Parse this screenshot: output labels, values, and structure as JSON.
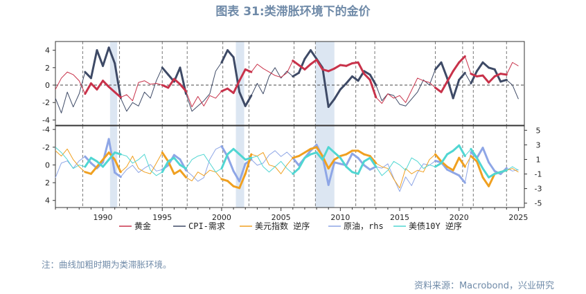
{
  "title": "图表 31:类滞胀环境下的金价",
  "note": "注：曲线加粗时期为类滞胀环境。",
  "source": "资料来源：Macrobond，兴业研究",
  "colors": {
    "gold": "#c8324a",
    "cpi": "#3e4a66",
    "usd": "#f0a020",
    "oil": "#8ea6e6",
    "ust10y": "#50d6d2",
    "shade": "#dce6f2",
    "vline": "#777777"
  },
  "chart_data": [
    {
      "type": "line",
      "panel": "top",
      "x_range": [
        1986.0,
        2025.5
      ],
      "ylim": [
        -4.6,
        5.0
      ],
      "y_ticks": [
        -4,
        -2,
        0,
        2,
        4
      ],
      "x_ticks": [
        1990,
        1995,
        2000,
        2005,
        2010,
        2015,
        2020,
        2025
      ],
      "zero_line": "dashed",
      "shaded_periods": [
        [
          1990.6,
          1991.2
        ],
        [
          2001.2,
          2001.9
        ],
        [
          2007.9,
          2009.5
        ]
      ],
      "event_lines": [
        1988.3,
        1991.4,
        1995.0,
        1997.1,
        2000.1,
        2002.3,
        2006.1,
        2007.9,
        2011.3,
        2012.9,
        2018.0,
        2020.3,
        2021.2,
        2024.0
      ],
      "bold_periods": [
        [
          1988.3,
          1991.4
        ],
        [
          1995.0,
          1997.1
        ],
        [
          2000.1,
          2002.3
        ],
        [
          2006.1,
          2007.9
        ],
        [
          2007.9,
          2011.3
        ],
        [
          2011.3,
          2012.9
        ],
        [
          2018.0,
          2020.3
        ],
        [
          2021.2,
          2024.0
        ]
      ],
      "series": [
        {
          "name": "黄金",
          "x": [
            1986.0,
            1986.5,
            1987.0,
            1987.5,
            1988.0,
            1988.5,
            1989.0,
            1989.5,
            1990.0,
            1990.5,
            1991.0,
            1991.5,
            1992.0,
            1992.5,
            1993.0,
            1993.5,
            1994.0,
            1994.5,
            1995.0,
            1995.5,
            1996.0,
            1996.5,
            1997.0,
            1997.5,
            1998.0,
            1998.5,
            1999.0,
            1999.5,
            2000.0,
            2000.5,
            2001.0,
            2001.5,
            2002.0,
            2002.5,
            2003.0,
            2003.5,
            2004.0,
            2004.5,
            2005.0,
            2005.5,
            2006.0,
            2006.5,
            2007.0,
            2007.5,
            2008.0,
            2008.5,
            2009.0,
            2009.5,
            2010.0,
            2010.5,
            2011.0,
            2011.5,
            2012.0,
            2012.5,
            2013.0,
            2013.5,
            2014.0,
            2014.5,
            2015.0,
            2015.5,
            2016.0,
            2016.5,
            2017.0,
            2017.5,
            2018.0,
            2018.5,
            2019.0,
            2019.5,
            2020.0,
            2020.5,
            2021.0,
            2021.5,
            2022.0,
            2022.5,
            2023.0,
            2023.5,
            2024.0,
            2024.5,
            2025.0
          ],
          "y": [
            -0.5,
            0.8,
            1.5,
            1.2,
            0.5,
            -1.0,
            0.2,
            -0.5,
            0.5,
            -0.2,
            -0.8,
            -1.4,
            -1.1,
            -1.8,
            0.3,
            0.5,
            0.1,
            0.2,
            0.0,
            -0.3,
            0.7,
            0.1,
            -0.7,
            -2.5,
            -1.3,
            -2.4,
            -1.2,
            -1.5,
            -0.7,
            -0.4,
            -0.9,
            0.5,
            1.8,
            1.5,
            2.4,
            1.9,
            1.5,
            1.1,
            0.9,
            1.4,
            2.8,
            2.3,
            1.8,
            2.4,
            2.9,
            1.8,
            1.6,
            1.9,
            2.3,
            2.2,
            2.5,
            2.6,
            1.3,
            0.6,
            -1.4,
            -2.1,
            -1.0,
            -1.5,
            -1.2,
            -2.0,
            -0.6,
            0.8,
            0.5,
            0.3,
            -0.3,
            -0.8,
            0.4,
            1.6,
            2.6,
            3.3,
            1.3,
            1.0,
            1.1,
            0.3,
            1.0,
            1.3,
            1.2,
            2.6,
            2.2
          ]
        },
        {
          "name": "CPI-需求",
          "x": [
            1986.0,
            1986.5,
            1987.0,
            1987.5,
            1988.0,
            1988.5,
            1989.0,
            1989.5,
            1990.0,
            1990.5,
            1991.0,
            1991.5,
            1992.0,
            1992.5,
            1993.0,
            1993.5,
            1994.0,
            1994.5,
            1995.0,
            1995.5,
            1996.0,
            1996.5,
            1997.0,
            1997.5,
            1998.0,
            1998.5,
            1999.0,
            1999.5,
            2000.0,
            2000.5,
            2001.0,
            2001.5,
            2002.0,
            2002.5,
            2003.0,
            2003.5,
            2004.0,
            2004.5,
            2005.0,
            2005.5,
            2006.0,
            2006.5,
            2007.0,
            2007.5,
            2008.0,
            2008.5,
            2009.0,
            2009.5,
            2010.0,
            2010.5,
            2011.0,
            2011.5,
            2012.0,
            2012.5,
            2013.0,
            2013.5,
            2014.0,
            2014.5,
            2015.0,
            2015.5,
            2016.0,
            2016.5,
            2017.0,
            2017.5,
            2018.0,
            2018.5,
            2019.0,
            2019.5,
            2020.0,
            2020.5,
            2021.0,
            2021.5,
            2022.0,
            2022.5,
            2023.0,
            2023.5,
            2024.0,
            2024.5,
            2025.0
          ],
          "y": [
            -1.5,
            -3.2,
            -0.8,
            -2.5,
            -1.0,
            1.5,
            0.8,
            4.0,
            2.2,
            4.3,
            2.5,
            -1.5,
            -3.0,
            -2.0,
            -2.4,
            -0.8,
            -1.5,
            0.5,
            2.0,
            1.2,
            0.4,
            2.0,
            -1.0,
            -3.0,
            -2.4,
            -1.8,
            -1.0,
            1.6,
            2.6,
            4.0,
            3.2,
            -0.8,
            -2.4,
            -1.2,
            0.2,
            -1.0,
            1.0,
            2.0,
            0.8,
            1.6,
            1.0,
            1.4,
            3.0,
            4.0,
            3.0,
            2.0,
            -2.5,
            -1.6,
            -0.5,
            0.2,
            1.0,
            0.5,
            1.6,
            1.2,
            0.0,
            -1.8,
            -1.0,
            -1.2,
            -2.2,
            -2.4,
            -1.6,
            -0.8,
            0.6,
            0.0,
            1.8,
            2.6,
            0.8,
            -1.5,
            0.6,
            1.4,
            0.2,
            1.6,
            2.6,
            2.0,
            1.8,
            0.4,
            0.6,
            0.0,
            -1.6
          ]
        }
      ]
    },
    {
      "type": "line",
      "panel": "bottom",
      "x_range": [
        1986.0,
        2025.5
      ],
      "ylim_left": [
        -4.4,
        4.8
      ],
      "ylim_left_inverted": true,
      "y_ticks_left": [
        -4,
        -2,
        0,
        2,
        4
      ],
      "ylim_right": [
        -5.6,
        5.6
      ],
      "y_ticks_right": [
        -5,
        -3,
        -1,
        1,
        3,
        5
      ],
      "x_ticks": [
        1990,
        1995,
        2000,
        2005,
        2010,
        2015,
        2020,
        2025
      ],
      "shaded_periods": [
        [
          1990.6,
          1991.2
        ],
        [
          2001.2,
          2001.9
        ],
        [
          2007.9,
          2009.5
        ]
      ],
      "event_lines": [
        1988.3,
        1991.4,
        1995.0,
        1997.1,
        2000.1,
        2002.3,
        2006.1,
        2007.9,
        2011.3,
        2012.9,
        2018.0,
        2020.3,
        2021.2,
        2024.0
      ],
      "bold_periods": [
        [
          1988.3,
          1991.4
        ],
        [
          1995.0,
          1997.1
        ],
        [
          2000.1,
          2002.3
        ],
        [
          2006.1,
          2007.9
        ],
        [
          2007.9,
          2011.3
        ],
        [
          2011.3,
          2012.9
        ],
        [
          2018.0,
          2020.3
        ],
        [
          2021.2,
          2024.0
        ]
      ],
      "series": [
        {
          "name": "美元指数 逆序",
          "axis": "left",
          "x": [
            1986.0,
            1986.5,
            1987.0,
            1987.5,
            1988.0,
            1988.5,
            1989.0,
            1989.5,
            1990.0,
            1990.5,
            1991.0,
            1991.5,
            1992.0,
            1992.5,
            1993.0,
            1993.5,
            1994.0,
            1994.5,
            1995.0,
            1995.5,
            1996.0,
            1996.5,
            1997.0,
            1997.5,
            1998.0,
            1998.5,
            1999.0,
            1999.5,
            2000.0,
            2000.5,
            2001.0,
            2001.5,
            2002.0,
            2002.5,
            2003.0,
            2003.5,
            2004.0,
            2004.5,
            2005.0,
            2005.5,
            2006.0,
            2006.5,
            2007.0,
            2007.5,
            2008.0,
            2008.5,
            2009.0,
            2009.5,
            2010.0,
            2010.5,
            2011.0,
            2011.5,
            2012.0,
            2012.5,
            2013.0,
            2013.5,
            2014.0,
            2014.5,
            2015.0,
            2015.5,
            2016.0,
            2016.5,
            2017.0,
            2017.5,
            2018.0,
            2018.5,
            2019.0,
            2019.5,
            2020.0,
            2020.5,
            2021.0,
            2021.5,
            2022.0,
            2022.5,
            2023.0,
            2023.5,
            2024.0,
            2024.5,
            2025.0
          ],
          "y": [
            -1.6,
            -1.0,
            -1.8,
            -0.6,
            0.2,
            0.8,
            1.0,
            0.2,
            -0.6,
            -1.4,
            -0.6,
            0.8,
            0.2,
            -1.0,
            0.4,
            0.8,
            1.0,
            -0.2,
            -1.4,
            -0.4,
            1.0,
            0.6,
            1.4,
            1.8,
            0.8,
            1.2,
            0.6,
            0.8,
            1.6,
            1.8,
            2.4,
            2.6,
            1.0,
            -1.2,
            -1.0,
            -1.4,
            0.0,
            0.2,
            1.0,
            0.0,
            -0.8,
            -1.0,
            -1.4,
            -1.8,
            -2.0,
            -1.0,
            0.4,
            -0.6,
            -1.0,
            -1.2,
            -1.6,
            -1.6,
            -1.2,
            -1.0,
            -0.2,
            0.2,
            0.4,
            1.6,
            2.6,
            0.4,
            1.0,
            0.6,
            0.8,
            -0.6,
            -1.2,
            -0.4,
            0.2,
            0.6,
            -0.8,
            0.2,
            -1.0,
            -0.4,
            1.4,
            2.4,
            1.0,
            0.8,
            0.6,
            0.4,
            0.8
          ]
        },
        {
          "name": "原油，rhs",
          "axis": "right",
          "x": [
            1986.0,
            1986.5,
            1987.0,
            1987.5,
            1988.0,
            1988.5,
            1989.0,
            1989.5,
            1990.0,
            1990.5,
            1991.0,
            1991.5,
            1992.0,
            1992.5,
            1993.0,
            1993.5,
            1994.0,
            1994.5,
            1995.0,
            1995.5,
            1996.0,
            1996.5,
            1997.0,
            1997.5,
            1998.0,
            1998.5,
            1999.0,
            1999.5,
            2000.0,
            2000.5,
            2001.0,
            2001.5,
            2002.0,
            2002.5,
            2003.0,
            2003.5,
            2004.0,
            2004.5,
            2005.0,
            2005.5,
            2006.0,
            2006.5,
            2007.0,
            2007.5,
            2008.0,
            2008.5,
            2009.0,
            2009.5,
            2010.0,
            2010.5,
            2011.0,
            2011.5,
            2012.0,
            2012.5,
            2013.0,
            2013.5,
            2014.0,
            2014.5,
            2015.0,
            2015.5,
            2016.0,
            2016.5,
            2017.0,
            2017.5,
            2018.0,
            2018.5,
            2019.0,
            2019.5,
            2020.0,
            2020.5,
            2021.0,
            2021.5,
            2022.0,
            2022.5,
            2023.0,
            2023.5,
            2024.0,
            2024.5,
            2025.0
          ],
          "y": [
            -1.5,
            0.5,
            0.8,
            -0.2,
            0.8,
            1.4,
            0.5,
            -0.2,
            0.6,
            3.8,
            -0.8,
            -1.4,
            -0.4,
            0.2,
            -0.8,
            -0.2,
            0.3,
            -0.6,
            -0.4,
            0.2,
            1.6,
            1.0,
            -0.5,
            -1.2,
            -2.0,
            -1.5,
            1.0,
            2.4,
            2.8,
            1.4,
            -0.6,
            -2.0,
            0.4,
            1.0,
            0.2,
            0.5,
            1.6,
            2.2,
            1.4,
            2.0,
            1.2,
            0.2,
            1.2,
            2.2,
            3.0,
            1.4,
            -2.5,
            0.6,
            0.4,
            0.2,
            1.8,
            1.2,
            0.2,
            -0.4,
            0.0,
            -0.2,
            0.4,
            -1.6,
            -3.4,
            -1.4,
            -2.6,
            -0.8,
            0.4,
            0.2,
            0.8,
            0.6,
            -0.4,
            -0.8,
            -1.2,
            -2.2,
            2.0,
            1.2,
            2.6,
            0.6,
            -0.6,
            -1.0,
            -0.2,
            -0.6,
            -0.4
          ]
        },
        {
          "name": "美债10Y 逆序",
          "axis": "left",
          "x": [
            1986.0,
            1986.5,
            1987.0,
            1987.5,
            1988.0,
            1988.5,
            1989.0,
            1989.5,
            1990.0,
            1990.5,
            1991.0,
            1991.5,
            1992.0,
            1992.5,
            1993.0,
            1993.5,
            1994.0,
            1994.5,
            1995.0,
            1995.5,
            1996.0,
            1996.5,
            1997.0,
            1997.5,
            1998.0,
            1998.5,
            1999.0,
            1999.5,
            2000.0,
            2000.5,
            2001.0,
            2001.5,
            2002.0,
            2002.5,
            2003.0,
            2003.5,
            2004.0,
            2004.5,
            2005.0,
            2005.5,
            2006.0,
            2006.5,
            2007.0,
            2007.5,
            2008.0,
            2008.5,
            2009.0,
            2009.5,
            2010.0,
            2010.5,
            2011.0,
            2011.5,
            2012.0,
            2012.5,
            2013.0,
            2013.5,
            2014.0,
            2014.5,
            2015.0,
            2015.5,
            2016.0,
            2016.5,
            2017.0,
            2017.5,
            2018.0,
            2018.5,
            2019.0,
            2019.5,
            2020.0,
            2020.5,
            2021.0,
            2021.5,
            2022.0,
            2022.5,
            2023.0,
            2023.5,
            2024.0,
            2024.5,
            2025.0
          ],
          "y": [
            -2.0,
            -1.4,
            -0.6,
            0.4,
            0.0,
            0.2,
            -0.8,
            -0.4,
            0.2,
            -0.6,
            -1.4,
            -1.2,
            -1.0,
            -0.2,
            -0.6,
            -1.2,
            0.6,
            1.2,
            0.8,
            -0.4,
            -0.8,
            0.0,
            0.4,
            -0.6,
            -1.0,
            -1.2,
            -0.2,
            0.8,
            0.4,
            -1.2,
            -1.8,
            -1.2,
            -0.6,
            -0.8,
            -1.0,
            0.2,
            0.8,
            0.2,
            -0.4,
            0.4,
            1.0,
            0.4,
            -0.8,
            -1.2,
            -1.4,
            -0.6,
            -2.0,
            -1.4,
            -0.8,
            0.2,
            0.8,
            1.0,
            -0.4,
            -0.8,
            0.2,
            1.2,
            0.6,
            -0.4,
            0.0,
            0.6,
            -0.8,
            -0.4,
            0.4,
            0.0,
            0.2,
            -0.2,
            -1.2,
            -1.6,
            -2.2,
            -1.0,
            -1.8,
            -0.8,
            0.4,
            1.4,
            1.0,
            0.8,
            0.6,
            0.2,
            0.6
          ]
        }
      ]
    }
  ],
  "legend": [
    {
      "label": "黄金",
      "color_key": "gold"
    },
    {
      "label": "CPI-需求",
      "color_key": "cpi"
    },
    {
      "label": "美元指数 逆序",
      "color_key": "usd"
    },
    {
      "label": "原油，rhs",
      "color_key": "oil"
    },
    {
      "label": "美债10Y 逆序",
      "color_key": "ust10y"
    }
  ]
}
